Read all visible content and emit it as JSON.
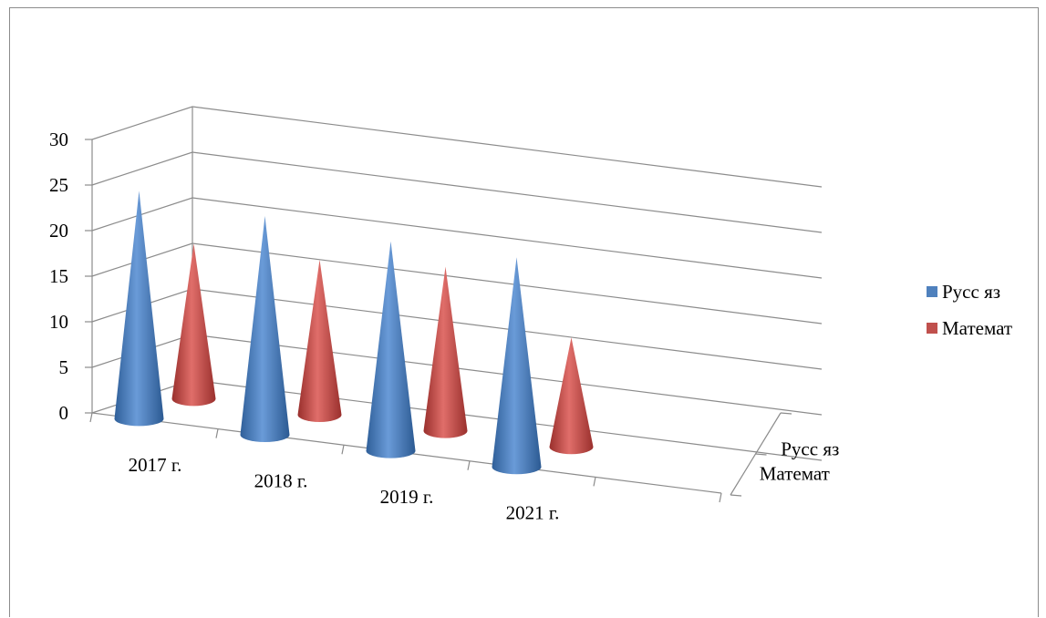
{
  "chart_data": {
    "type": "bar",
    "shape": "3d-cone",
    "categories": [
      "2017 г.",
      "2018 г.",
      "2019 г.",
      "2021 г."
    ],
    "series": [
      {
        "name": "Русс яз",
        "color": "#4F81BD",
        "values": [
          25,
          24,
          23,
          23
        ]
      },
      {
        "name": "Математ",
        "color": "#C0504D",
        "values": [
          17,
          17,
          18,
          12
        ]
      }
    ],
    "ylim": [
      0,
      30
    ],
    "yticks": [
      "0",
      "5",
      "10",
      "15",
      "20",
      "25",
      "30"
    ],
    "depth_labels": [
      "Математ",
      "Русс яз"
    ],
    "grid": true,
    "legend_position": "right"
  }
}
